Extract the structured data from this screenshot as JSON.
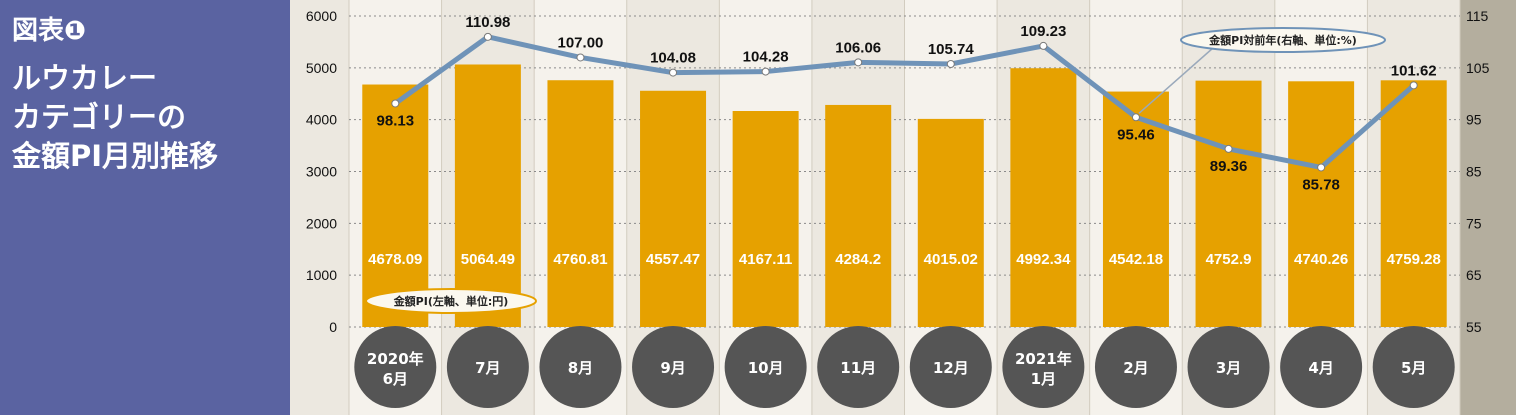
{
  "figure_label": "図表❶",
  "title_lines": [
    "ルウカレー",
    "カテゴリーの",
    "金額PI月別推移"
  ],
  "colors": {
    "panel": "#5a63a1",
    "bar": "#e6a100",
    "line": "#6f93b8",
    "circle": "#555555",
    "plot_bg": "#ece8e0",
    "band": "#f5f2ec",
    "right_axis_bg": "#b4ae9e"
  },
  "chart_data": {
    "type": "bar",
    "categories": [
      "2020年\n6月",
      "7月",
      "8月",
      "9月",
      "10月",
      "11月",
      "12月",
      "2021年\n1月",
      "2月",
      "3月",
      "4月",
      "5月"
    ],
    "series": [
      {
        "name": "金額PI(左軸、単位:円)",
        "type": "bar",
        "axis": "left",
        "values": [
          4678.09,
          5064.49,
          4760.81,
          4557.47,
          4167.11,
          4284.2,
          4015.02,
          4992.34,
          4542.18,
          4752.9,
          4740.26,
          4759.28
        ],
        "labels": [
          "4678.09",
          "5064.49",
          "4760.81",
          "4557.47",
          "4167.11",
          "4284.2",
          "4015.02",
          "4992.34",
          "4542.18",
          "4752.9",
          "4740.26",
          "4759.28"
        ]
      },
      {
        "name": "金額PI対前年(右軸、単位:%)",
        "type": "line",
        "axis": "right",
        "values": [
          98.13,
          110.98,
          107.0,
          104.08,
          104.28,
          106.06,
          105.74,
          109.23,
          95.46,
          89.36,
          85.78,
          101.62
        ],
        "labels": [
          "98.13",
          "110.98",
          "107.00",
          "104.08",
          "104.28",
          "106.06",
          "105.74",
          "109.23",
          "95.46",
          "89.36",
          "85.78",
          "101.62"
        ]
      }
    ],
    "y_left": {
      "ticks": [
        "0",
        "1000",
        "2000",
        "3000",
        "4000",
        "5000",
        "6000"
      ],
      "ylim": [
        0,
        6000
      ]
    },
    "y_right": {
      "ticks": [
        "55",
        "65",
        "75",
        "85",
        "95",
        "105",
        "115"
      ],
      "ylim": [
        55,
        115
      ]
    },
    "grid": true,
    "legend": "callouts"
  }
}
